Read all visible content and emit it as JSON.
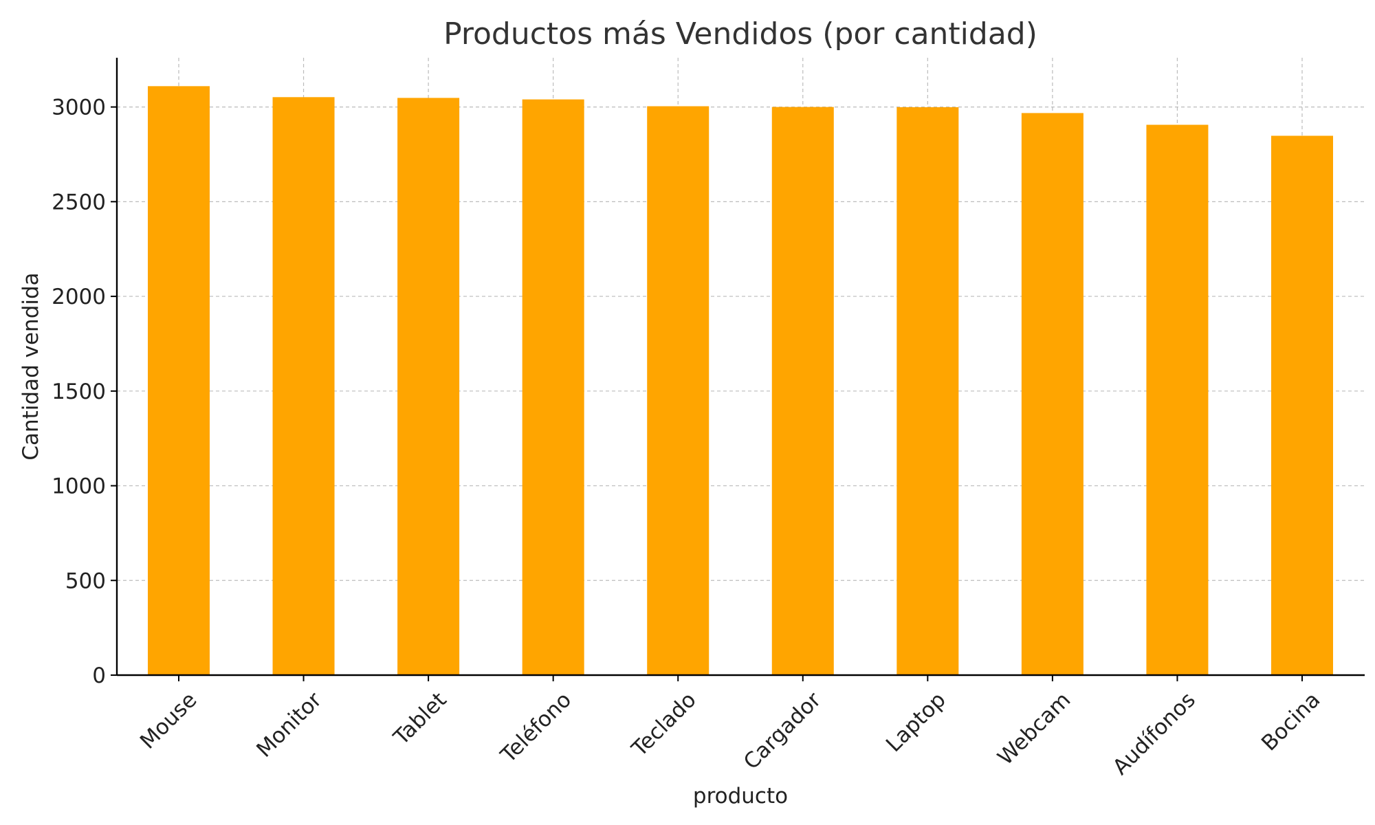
{
  "chart_data": {
    "type": "bar",
    "title": "Productos más Vendidos (por cantidad)",
    "xlabel": "producto",
    "ylabel": "Cantidad vendida",
    "categories": [
      "Mouse",
      "Monitor",
      "Tablet",
      "Teléfono",
      "Teclado",
      "Cargador",
      "Laptop",
      "Webcam",
      "Audífonos",
      "Bocina"
    ],
    "values": [
      3110,
      3052,
      3048,
      3040,
      3004,
      3000,
      2999,
      2968,
      2906,
      2848
    ],
    "ylim": [
      0,
      3260
    ],
    "yticks": [
      0,
      500,
      1000,
      1500,
      2000,
      2500,
      3000
    ],
    "grid": true,
    "bar_color": "#FFA500"
  }
}
